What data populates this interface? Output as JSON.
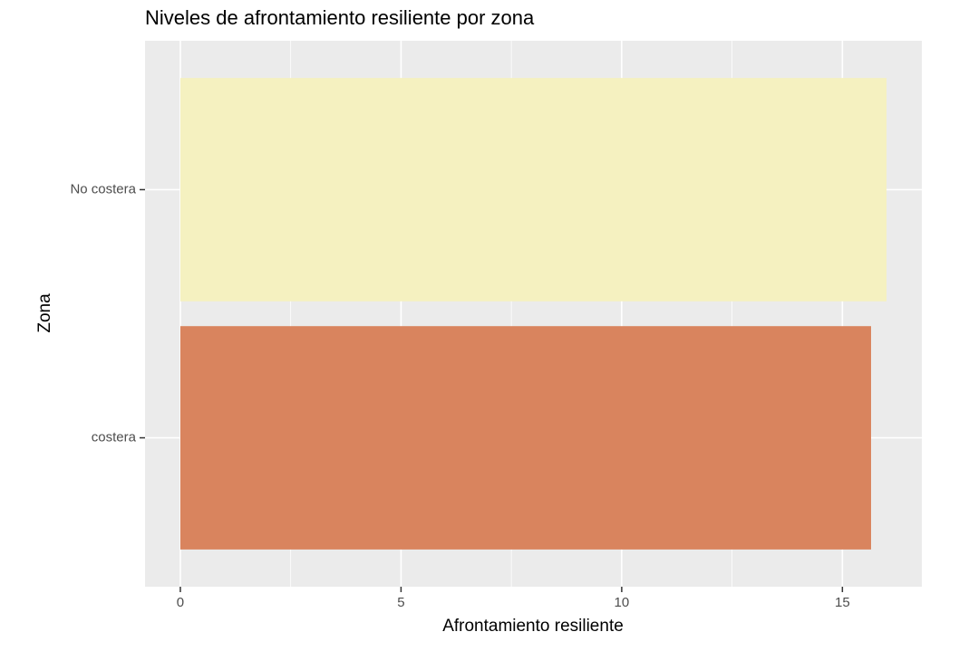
{
  "chart_data": {
    "type": "barh",
    "title": "Niveles de afrontamiento resiliente por zona",
    "xlabel": "Afrontamiento resiliente",
    "ylabel": "Zona",
    "categories": [
      "costera",
      "No costera"
    ],
    "values": [
      15.65,
      16.0
    ],
    "colors": [
      "#d9845e",
      "#f5f1c0"
    ],
    "xlim": [
      -0.8,
      16.8
    ],
    "xticks": [
      0,
      5,
      10,
      15
    ],
    "xminor": [
      2.5,
      7.5,
      12.5
    ],
    "grid": true
  }
}
